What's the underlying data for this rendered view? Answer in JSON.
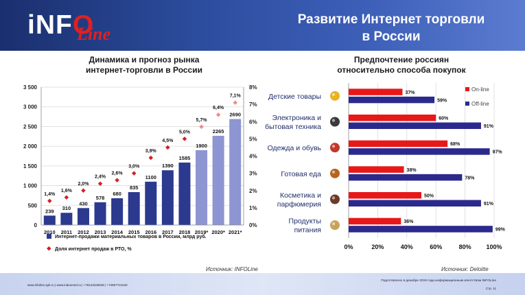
{
  "header": {
    "logo_main_a": "iNF",
    "logo_main_b": "O",
    "logo_sub": "Line",
    "title_line1": "Развитие Интернет торговли",
    "title_line2": "в России"
  },
  "left": {
    "title_line1": "Динамика и прогноз рынка",
    "title_line2": "интернет-торговли в России",
    "source": "Источник: INFOLine"
  },
  "right": {
    "title_line1": "Предпочтение россиян",
    "title_line2": "относительно способа покупок",
    "source": "Источник: Deloitte"
  },
  "footer": {
    "left": "www.infoline.spb.ru | www.indexmed.ru | +78123226848 | +74957721640",
    "right": "Подготовлено в декабре 2019 года информационным агентством INFOLine",
    "page": "Стр. 11"
  },
  "colors": {
    "bar_dark": "#2b3a8e",
    "bar_light": "#8d95d2",
    "diamond": "#d22222",
    "diamond_forecast": "#f08a8a",
    "online": "#e81818",
    "offline": "#2b2a8c"
  },
  "chart_data": [
    {
      "type": "bar",
      "title": "Динамика и прогноз рынка интернет-торговли в России",
      "categories": [
        "2010",
        "2011",
        "2012",
        "2013",
        "2014",
        "2015",
        "2016",
        "2017",
        "2018",
        "2019*",
        "2020*",
        "2021*"
      ],
      "forecast_from_index": 9,
      "ylim": [
        0,
        3500
      ],
      "yticks": [
        "0",
        "500",
        "1 000",
        "1 500",
        "2 000",
        "2 500",
        "3 000",
        "3 500"
      ],
      "y2lim": [
        0,
        8
      ],
      "y2ticks": [
        "0%",
        "1%",
        "2%",
        "3%",
        "4%",
        "5%",
        "6%",
        "7%",
        "8%"
      ],
      "grid": true,
      "legend_position": "bottom",
      "series": [
        {
          "name": "Интернет-продажи материальных товаров в России, млрд руб.",
          "type": "bar",
          "values": [
            239,
            310,
            430,
            578,
            680,
            835,
            1100,
            1390,
            1585,
            1900,
            2265,
            2690
          ],
          "labels": [
            "239",
            "310",
            "430",
            "578",
            "680",
            "835",
            "1100",
            "1390",
            "1585",
            "1900",
            "2265",
            "2690"
          ]
        },
        {
          "name": "Доля интернет продаж в РТО, %",
          "type": "scatter",
          "axis": "secondary",
          "values": [
            1.4,
            1.6,
            2.0,
            2.4,
            2.6,
            3.0,
            3.9,
            4.5,
            5.0,
            5.7,
            6.4,
            7.1
          ],
          "labels": [
            "1,4%",
            "1,6%",
            "2,0%",
            "2,4%",
            "2,6%",
            "3,0%",
            "3,9%",
            "4,5%",
            "5,0%",
            "5,7%",
            "6,4%",
            "7,1%"
          ]
        }
      ]
    },
    {
      "type": "bar",
      "orientation": "horizontal",
      "title": "Предпочтение россиян относительно способа покупок",
      "categories": [
        "Детские товары",
        "Электроника и бытовая техника",
        "Одежда и обувь",
        "Готовая еда",
        "Косметика и парфюмерия",
        "Продукты питания"
      ],
      "category_lines": [
        [
          "Детские товары"
        ],
        [
          "Электроника и",
          "бытовая техника"
        ],
        [
          "Одежда и обувь"
        ],
        [
          "Готовая еда"
        ],
        [
          "Косметика и",
          "парфюмерия"
        ],
        [
          "Продукты",
          "питания"
        ]
      ],
      "category_icons": [
        "stroller-icon",
        "tv-icon",
        "shoe-icon",
        "food-icon",
        "cosmetics-icon",
        "grocery-bag-icon"
      ],
      "xlim": [
        0,
        100
      ],
      "xticks": [
        "0%",
        "20%",
        "40%",
        "60%",
        "80%",
        "100%"
      ],
      "grid": true,
      "legend_position": "top-right",
      "series": [
        {
          "name": "On-line",
          "values": [
            37,
            60,
            68,
            38,
            50,
            36
          ],
          "labels": [
            "37%",
            "60%",
            "68%",
            "38%",
            "50%",
            "36%"
          ]
        },
        {
          "name": "Off-line",
          "values": [
            59,
            91,
            97,
            78,
            91,
            99
          ],
          "labels": [
            "59%",
            "91%",
            "97%",
            "78%",
            "91%",
            "99%"
          ]
        }
      ]
    }
  ]
}
